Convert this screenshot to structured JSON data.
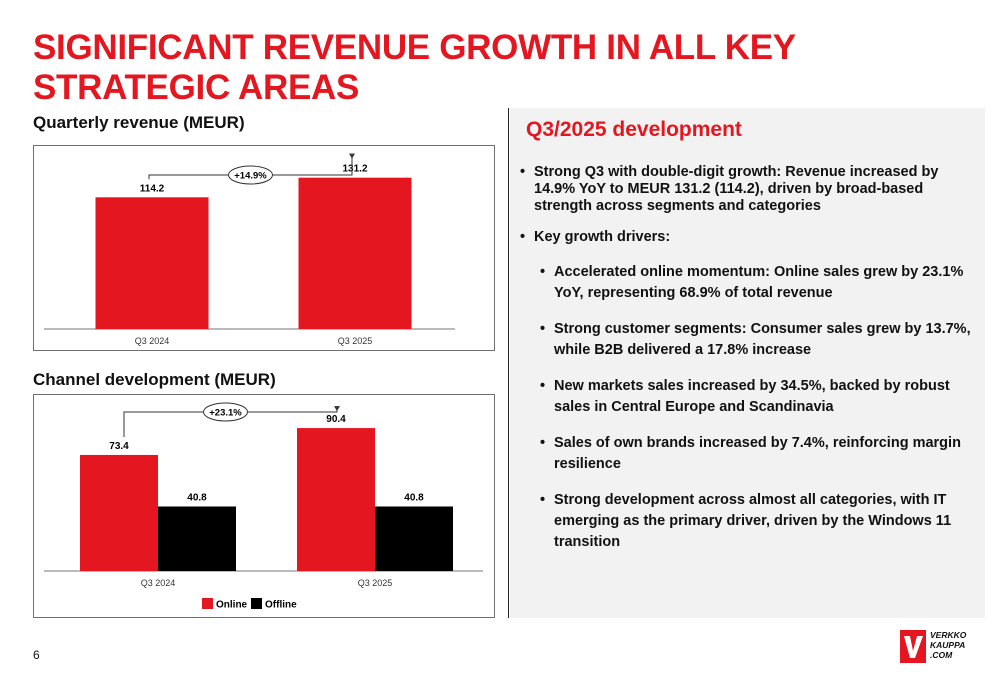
{
  "slide": {
    "title": "SIGNIFICANT REVENUE GROWTH IN ALL KEY STRATEGIC AREAS",
    "page_number": "6"
  },
  "colors": {
    "accent": "#e4161f",
    "offline": "#000000",
    "panel_bg": "#f2f2f2"
  },
  "left": {
    "revenue_label": "Quarterly revenue (MEUR)",
    "channel_label": "Channel development (MEUR)"
  },
  "chart_data": [
    {
      "type": "bar",
      "title": "Quarterly revenue (MEUR)",
      "categories": [
        "Q3 2024",
        "Q3 2025"
      ],
      "values": [
        114.2,
        131.2
      ],
      "value_labels": [
        "114.2",
        "131.2"
      ],
      "growth_annotation": "+14.9%",
      "ylim": [
        0,
        150
      ],
      "color": "#e4161f",
      "legend": "none"
    },
    {
      "type": "bar",
      "title": "Channel development (MEUR)",
      "categories": [
        "Q3 2024",
        "Q3 2025"
      ],
      "series": [
        {
          "name": "Online",
          "values": [
            73.4,
            90.4
          ],
          "value_labels": [
            "73.4",
            "90.4"
          ],
          "color": "#e4161f"
        },
        {
          "name": "Offline",
          "values": [
            40.8,
            40.8
          ],
          "value_labels": [
            "40.8",
            "40.8"
          ],
          "color": "#000000"
        }
      ],
      "growth_annotation": "+23.1%",
      "ylim": [
        0,
        105
      ],
      "legend": "bottom-center",
      "legend_labels": [
        "Online",
        "Offline"
      ]
    }
  ],
  "right": {
    "heading": "Q3/2025 development",
    "bullets": [
      "Strong Q3 with double-digit growth: Revenue increased by 14.9% YoY to MEUR 131.2 (114.2), driven by broad-based strength across segments and categories",
      "Key growth drivers:"
    ],
    "sub_bullets": [
      "Accelerated online momentum: Online sales grew by 23.1% YoY, representing 68.9% of total revenue",
      "Strong customer segments: Consumer sales grew by 13.7%, while B2B delivered a 17.8% increase",
      "New markets sales increased by 34.5%, backed by robust sales in Central Europe and Scandinavia",
      "Sales of own brands increased by 7.4%, reinforcing margin resilience",
      "Strong development across almost all categories, with IT emerging as the primary driver, driven by the Windows 11 transition"
    ]
  },
  "logo": {
    "line1": "VERKKO",
    "line2": "KAUPPA",
    "line3": ".COM",
    "icon": "verkkokauppa-logo-icon"
  }
}
